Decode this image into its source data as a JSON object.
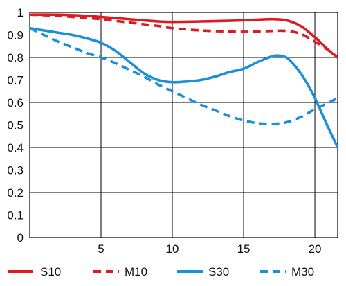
{
  "chart_data": {
    "type": "line",
    "title": "",
    "xlabel": "",
    "ylabel": "",
    "xlim": [
      0,
      21.6
    ],
    "ylim": [
      0,
      1
    ],
    "grid": true,
    "legend_position": "bottom",
    "x_ticks": [
      5,
      10,
      15,
      20
    ],
    "x_tick_labels": [
      "5",
      "10",
      "15",
      "20"
    ],
    "y_ticks": [
      0,
      0.1,
      0.2,
      0.3,
      0.4,
      0.5,
      0.6,
      0.7,
      0.8,
      0.9,
      1
    ],
    "y_tick_labels": [
      "0",
      "0.1",
      "0.2",
      "0.3",
      "0.4",
      "0.5",
      "0.6",
      "0.7",
      "0.8",
      "0.9",
      "1"
    ],
    "series": [
      {
        "name": "S10",
        "color": "#dd1a21",
        "dash": "solid",
        "x": [
          0,
          2,
          4,
          5,
          7,
          9,
          10,
          12,
          14,
          15,
          16,
          17,
          18,
          19,
          20,
          21,
          21.6
        ],
        "y": [
          0.99,
          0.99,
          0.985,
          0.98,
          0.97,
          0.96,
          0.958,
          0.96,
          0.963,
          0.965,
          0.968,
          0.97,
          0.965,
          0.94,
          0.89,
          0.83,
          0.8
        ]
      },
      {
        "name": "M10",
        "color": "#dd1a21",
        "dash": "dashed",
        "x": [
          0,
          2,
          4,
          5,
          7,
          9,
          10,
          12,
          14,
          15,
          16,
          17,
          18,
          19,
          20,
          21,
          21.6
        ],
        "y": [
          0.99,
          0.985,
          0.975,
          0.97,
          0.955,
          0.94,
          0.93,
          0.92,
          0.915,
          0.914,
          0.915,
          0.918,
          0.918,
          0.905,
          0.87,
          0.83,
          0.8
        ]
      },
      {
        "name": "S30",
        "color": "#1a90d8",
        "dash": "solid",
        "x": [
          0,
          1,
          2,
          3,
          4,
          5,
          6,
          7,
          8,
          9,
          10,
          11,
          12,
          13,
          14,
          15,
          16,
          17,
          17.5,
          18,
          18.5,
          19,
          19.5,
          20,
          20.5,
          21,
          21.6
        ],
        "y": [
          0.93,
          0.92,
          0.91,
          0.9,
          0.885,
          0.865,
          0.83,
          0.78,
          0.73,
          0.7,
          0.69,
          0.693,
          0.7,
          0.715,
          0.735,
          0.75,
          0.78,
          0.805,
          0.808,
          0.8,
          0.77,
          0.73,
          0.68,
          0.62,
          0.55,
          0.48,
          0.4
        ]
      },
      {
        "name": "M30",
        "color": "#1a90d8",
        "dash": "dashed",
        "x": [
          0,
          1,
          2,
          3,
          4,
          5,
          6,
          7,
          8,
          9,
          10,
          11,
          12,
          13,
          14,
          15,
          16,
          17,
          18,
          19,
          20,
          21,
          21.6
        ],
        "y": [
          0.93,
          0.9,
          0.87,
          0.845,
          0.82,
          0.8,
          0.775,
          0.745,
          0.715,
          0.68,
          0.65,
          0.62,
          0.59,
          0.565,
          0.54,
          0.52,
          0.508,
          0.505,
          0.512,
          0.535,
          0.57,
          0.6,
          0.62
        ]
      }
    ]
  }
}
